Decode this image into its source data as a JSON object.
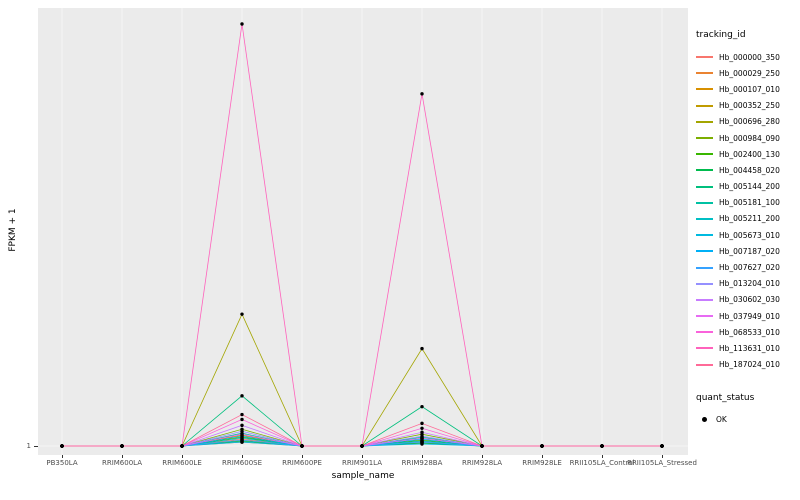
{
  "axes": {
    "x_label": "sample_name",
    "y_label": "FPKM + 1",
    "y_tick": "1"
  },
  "legend": {
    "tracking_title": "tracking_id",
    "quant_title": "quant_status",
    "quant_label": "OK"
  },
  "chart_data": {
    "type": "line",
    "title": "",
    "xlabel": "sample_name",
    "ylabel": "FPKM + 1",
    "y_tick_labels": [
      "1"
    ],
    "ylim": [
      1,
      430
    ],
    "legend_position": "right",
    "panel_background": "#EBEBEB",
    "grid_color": "#FFFFFF",
    "point_color": "#000000",
    "point_status_all": "OK",
    "categories": [
      "PB350LA",
      "RRIM600LA",
      "RRIM600LE",
      "RRIM600SE",
      "RRIM600PE",
      "RRIM901LA",
      "RRIM928BA",
      "RRIM928LA",
      "RRIM928LE",
      "RRII105LA_Control",
      "RRII105LA_Stressed"
    ],
    "series": [
      {
        "name": "Hb_000000_350",
        "color": "#F8766D",
        "values": [
          1,
          1,
          1,
          8,
          1,
          1,
          6,
          1,
          1,
          1,
          1
        ]
      },
      {
        "name": "Hb_000029_250",
        "color": "#EA8331",
        "values": [
          1,
          1,
          1,
          5,
          1,
          1,
          4,
          1,
          1,
          1,
          1
        ]
      },
      {
        "name": "Hb_000107_010",
        "color": "#D89000",
        "values": [
          1,
          1,
          1,
          12,
          1,
          1,
          9,
          1,
          1,
          1,
          1
        ]
      },
      {
        "name": "Hb_000352_250",
        "color": "#C09B00",
        "values": [
          1,
          1,
          1,
          7,
          1,
          1,
          5,
          1,
          1,
          1,
          1
        ]
      },
      {
        "name": "Hb_000696_280",
        "color": "#A3A500",
        "values": [
          1,
          1,
          1,
          135,
          1,
          1,
          100,
          1,
          1,
          1,
          1
        ]
      },
      {
        "name": "Hb_000984_090",
        "color": "#7CAE00",
        "values": [
          1,
          1,
          1,
          18,
          1,
          1,
          13,
          1,
          1,
          1,
          1
        ]
      },
      {
        "name": "Hb_002400_130",
        "color": "#39B600",
        "values": [
          1,
          1,
          1,
          10,
          1,
          1,
          7,
          1,
          1,
          1,
          1
        ]
      },
      {
        "name": "Hb_004458_020",
        "color": "#00BB4E",
        "values": [
          1,
          1,
          1,
          6,
          1,
          1,
          4,
          1,
          1,
          1,
          1
        ]
      },
      {
        "name": "Hb_005144_200",
        "color": "#00BF7D",
        "values": [
          1,
          1,
          1,
          52,
          1,
          1,
          41,
          1,
          1,
          1,
          1
        ]
      },
      {
        "name": "Hb_005181_100",
        "color": "#00C1A3",
        "values": [
          1,
          1,
          1,
          14,
          1,
          1,
          10,
          1,
          1,
          1,
          1
        ]
      },
      {
        "name": "Hb_005211_200",
        "color": "#00BFC4",
        "values": [
          1,
          1,
          1,
          9,
          1,
          1,
          6,
          1,
          1,
          1,
          1
        ]
      },
      {
        "name": "Hb_005673_010",
        "color": "#00BAE0",
        "values": [
          1,
          1,
          1,
          5,
          1,
          1,
          3,
          1,
          1,
          1,
          1
        ]
      },
      {
        "name": "Hb_007187_020",
        "color": "#00B0F6",
        "values": [
          1,
          1,
          1,
          11,
          1,
          1,
          8,
          1,
          1,
          1,
          1
        ]
      },
      {
        "name": "Hb_007627_020",
        "color": "#35A2FF",
        "values": [
          1,
          1,
          1,
          7,
          1,
          1,
          5,
          1,
          1,
          1,
          1
        ]
      },
      {
        "name": "Hb_013204_010",
        "color": "#9590FF",
        "values": [
          1,
          1,
          1,
          16,
          1,
          1,
          11,
          1,
          1,
          1,
          1
        ]
      },
      {
        "name": "Hb_030602_030",
        "color": "#C77CFF",
        "values": [
          1,
          1,
          1,
          22,
          1,
          1,
          15,
          1,
          1,
          1,
          1
        ]
      },
      {
        "name": "Hb_037949_010",
        "color": "#E76BF3",
        "values": [
          1,
          1,
          1,
          13,
          1,
          1,
          9,
          1,
          1,
          1,
          1
        ]
      },
      {
        "name": "Hb_068533_010",
        "color": "#FA62DB",
        "values": [
          1,
          1,
          1,
          28,
          1,
          1,
          19,
          1,
          1,
          1,
          1
        ]
      },
      {
        "name": "Hb_113631_010",
        "color": "#FF62BC",
        "values": [
          1,
          1,
          1,
          430,
          1,
          1,
          359,
          1,
          1,
          1,
          1
        ]
      },
      {
        "name": "Hb_187024_010",
        "color": "#FF6A98",
        "values": [
          1,
          1,
          1,
          33,
          1,
          1,
          24,
          1,
          1,
          1,
          1
        ]
      }
    ]
  }
}
